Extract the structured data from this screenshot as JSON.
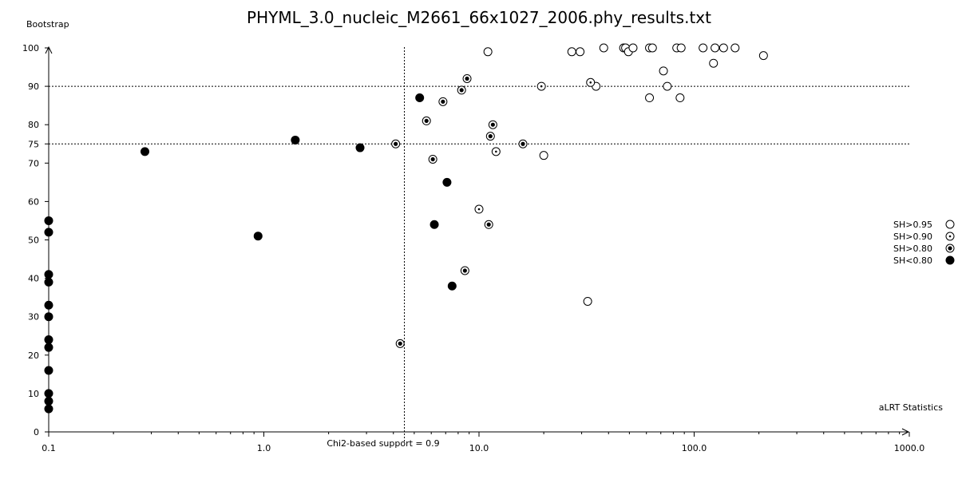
{
  "chart_data": {
    "type": "scatter",
    "title": "PHYML_3.0_nucleic_M2661_66x1027_2006.phy_results.txt",
    "xlabel": "aLRT Statistics",
    "ylabel": "Bootstrap",
    "x_scale": "log",
    "xlim": [
      0.1,
      1000.0
    ],
    "ylim": [
      0,
      100
    ],
    "x_ticks": [
      "0.1",
      "1.0",
      "10.0",
      "100.0",
      "1000.0"
    ],
    "y_ticks": [
      0,
      10,
      20,
      30,
      40,
      50,
      60,
      70,
      75,
      80,
      90,
      100
    ],
    "grid": false,
    "reference_lines": {
      "vertical": {
        "x": 4.5,
        "label": "Chi2-based support = 0.9"
      },
      "horizontal": [
        90,
        75
      ]
    },
    "legend_position": "right",
    "series": [
      {
        "name": "SH>0.95",
        "marker": "open-circle",
        "points": [
          [
            11.0,
            99
          ],
          [
            27,
            99
          ],
          [
            29.5,
            99
          ],
          [
            38,
            100
          ],
          [
            47,
            100
          ],
          [
            48,
            100
          ],
          [
            49.5,
            99
          ],
          [
            52,
            100
          ],
          [
            62,
            100
          ],
          [
            64,
            100
          ],
          [
            83,
            100
          ],
          [
            87,
            100
          ],
          [
            110,
            100
          ],
          [
            125,
            100
          ],
          [
            137,
            100
          ],
          [
            155,
            100
          ],
          [
            210,
            98
          ],
          [
            123,
            96
          ],
          [
            72,
            94
          ],
          [
            75,
            90
          ],
          [
            35,
            90
          ],
          [
            62,
            87
          ],
          [
            86,
            87
          ],
          [
            20,
            72
          ],
          [
            32,
            34
          ]
        ]
      },
      {
        "name": "SH>0.90",
        "marker": "dotted-circle",
        "points": [
          [
            19.5,
            90
          ],
          [
            33,
            91
          ],
          [
            12,
            73
          ],
          [
            10,
            58
          ]
        ]
      },
      {
        "name": "SH>0.80",
        "marker": "filled-center-circle",
        "points": [
          [
            8.8,
            92
          ],
          [
            8.3,
            89
          ],
          [
            6.8,
            86
          ],
          [
            5.7,
            81
          ],
          [
            11.6,
            80
          ],
          [
            11.3,
            77
          ],
          [
            4.1,
            75
          ],
          [
            16,
            75
          ],
          [
            6.1,
            71
          ],
          [
            11.1,
            54
          ],
          [
            8.6,
            42
          ],
          [
            4.3,
            23
          ]
        ]
      },
      {
        "name": "SH<0.80",
        "marker": "filled-circle",
        "points": [
          [
            5.3,
            87
          ],
          [
            0.28,
            73
          ],
          [
            1.4,
            76
          ],
          [
            2.8,
            74
          ],
          [
            7.1,
            65
          ],
          [
            6.2,
            54
          ],
          [
            7.5,
            38
          ],
          [
            0.94,
            51
          ],
          [
            0.1,
            55
          ],
          [
            0.1,
            52
          ],
          [
            0.1,
            41
          ],
          [
            0.1,
            39
          ],
          [
            0.1,
            33
          ],
          [
            0.1,
            30
          ],
          [
            0.1,
            24
          ],
          [
            0.1,
            22
          ],
          [
            0.1,
            16
          ],
          [
            0.1,
            10
          ],
          [
            0.1,
            8
          ],
          [
            0.1,
            6
          ]
        ]
      }
    ]
  }
}
